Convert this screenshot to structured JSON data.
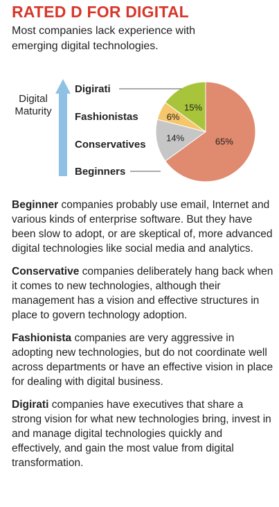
{
  "title": "RATED D FOR DIGITAL",
  "subtitle": "Most companies lack experience with emerging digital technologies.",
  "colors": {
    "title": "#d7362b",
    "arrow": "#8fc1e4",
    "beginners": "#e08a6f",
    "conservatives": "#c6c6c6",
    "fashionistas": "#f6c66a",
    "digirati": "#a8c43a"
  },
  "chart_data": {
    "type": "pie",
    "axis_label": [
      "Digital",
      "Maturity"
    ],
    "slices": [
      {
        "label": "Beginners",
        "value": 65,
        "display": "65%"
      },
      {
        "label": "Conservatives",
        "value": 14,
        "display": "14%"
      },
      {
        "label": "Fashionistas",
        "value": 6,
        "display": "6%"
      },
      {
        "label": "Digirati",
        "value": 15,
        "display": "15%"
      }
    ]
  },
  "paragraphs": [
    {
      "term": "Beginner",
      "text": " companies probably use email, Internet and various kinds of enterprise software. But they have been slow to adopt, or are skeptical of, more advanced digital technologies like social media and analytics."
    },
    {
      "term": "Conservative",
      "text": " companies deliberately hang back when it comes to new technologies, although their management has a vision and effective structures in place to govern technology adoption."
    },
    {
      "term": "Fashionista",
      "text": " companies are very aggressive in adopting new technologies, but do not coordinate well across departments or have an effective vision in place for dealing with digital business."
    },
    {
      "term": "Digirati",
      "text": " companies have executives that share a strong vision for what new technologies bring, invest in and manage digital technologies quickly and effectively, and gain the most value from digital transformation."
    }
  ]
}
